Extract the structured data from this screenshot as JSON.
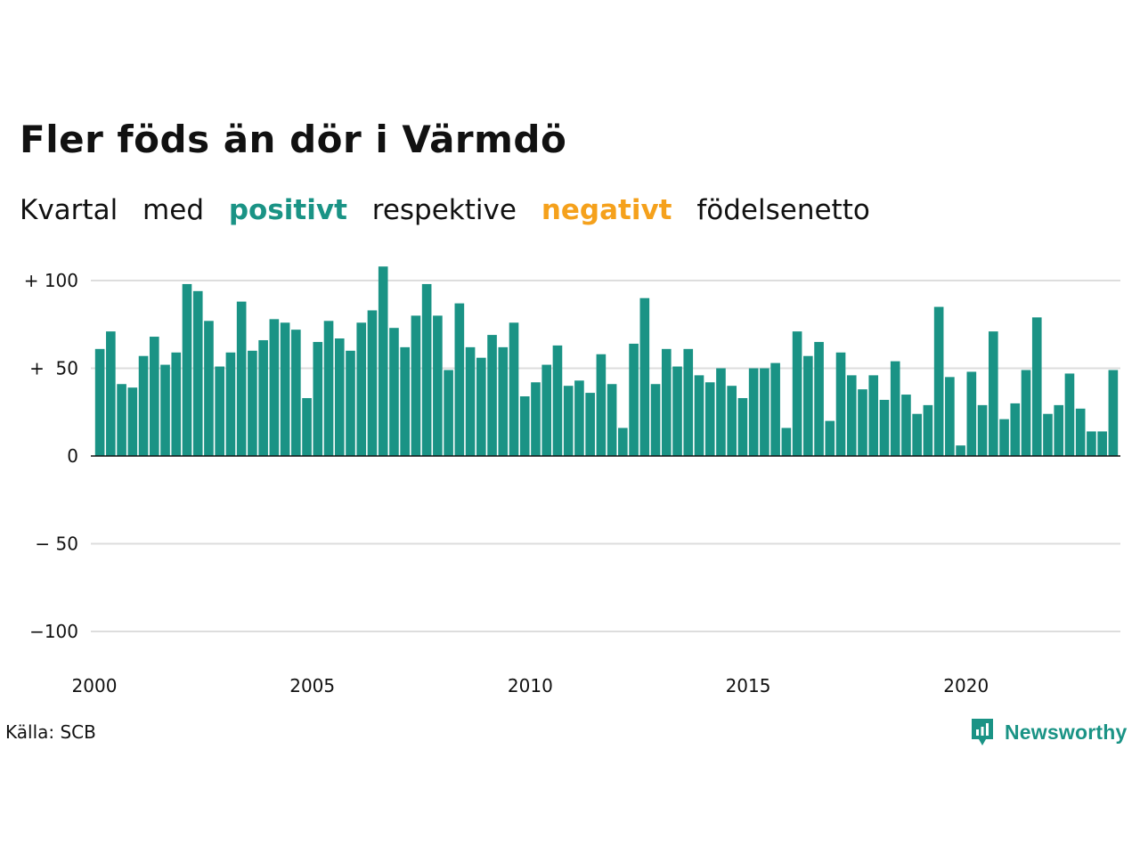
{
  "title": "Fler föds än dör i Värmdö",
  "subtitle": {
    "part1": "Kvartal",
    "part2": "med",
    "positive": "positivt",
    "part3": "respektive",
    "negative": "negativt",
    "part4": "födelsenetto"
  },
  "source": "Källa: SCB",
  "logo": {
    "name": "Newsworthy",
    "icon": "newsworthy-chart-bubble-icon"
  },
  "colors": {
    "positive": "#1a9385",
    "negative": "#f5a11c",
    "grid": "#dddddd",
    "text": "#111111"
  },
  "chart_data": {
    "type": "bar",
    "x_start": "2000 Q1",
    "frequency": "quarterly",
    "xticks": [
      "2000",
      "2005",
      "2010",
      "2015",
      "2020"
    ],
    "yticks": [
      {
        "value": 100,
        "label": "+ 100"
      },
      {
        "value": 50,
        "label": "+  50"
      },
      {
        "value": 0,
        "label": "0"
      },
      {
        "value": -50,
        "label": "− 50"
      },
      {
        "value": -100,
        "label": "−100"
      }
    ],
    "ylim": [
      -100,
      110
    ],
    "grid": true,
    "values": [
      61,
      71,
      41,
      39,
      57,
      68,
      52,
      59,
      98,
      94,
      77,
      51,
      59,
      88,
      60,
      66,
      78,
      76,
      72,
      33,
      65,
      77,
      67,
      60,
      76,
      83,
      108,
      73,
      62,
      80,
      98,
      80,
      49,
      87,
      62,
      56,
      69,
      62,
      76,
      34,
      42,
      52,
      63,
      40,
      43,
      36,
      58,
      41,
      16,
      64,
      90,
      41,
      61,
      51,
      61,
      46,
      42,
      50,
      40,
      33,
      50,
      50,
      53,
      16,
      71,
      57,
      65,
      20,
      59,
      46,
      38,
      46,
      32,
      54,
      35,
      24,
      29,
      85,
      45,
      6,
      48,
      29,
      71,
      21,
      30,
      49,
      79,
      24,
      29,
      47,
      27,
      14,
      14,
      49
    ]
  }
}
